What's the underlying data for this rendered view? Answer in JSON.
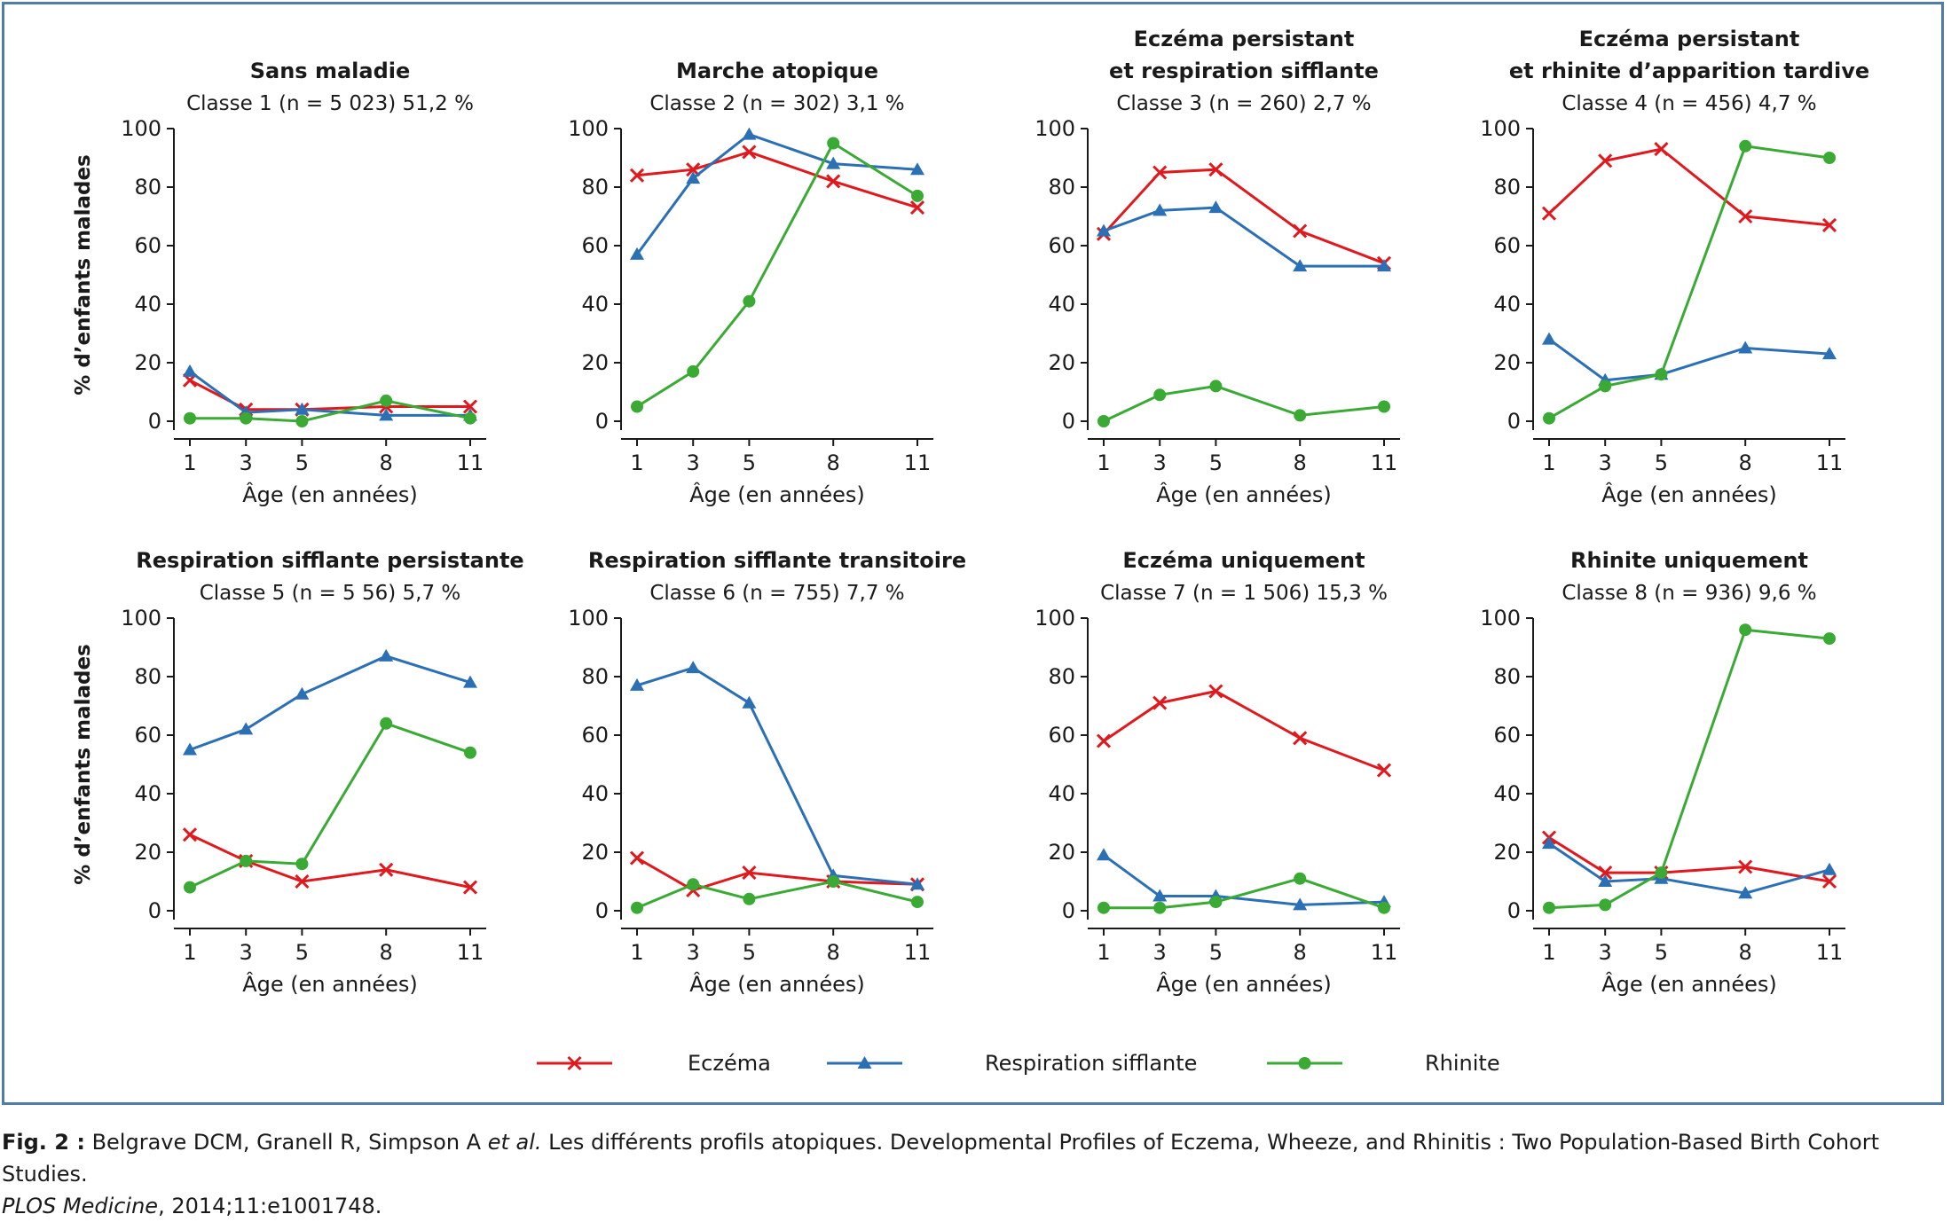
{
  "series_styles": [
    {
      "key": "eczema",
      "name": "Eczéma",
      "color": "#e0191e",
      "marker": "x"
    },
    {
      "key": "wheeze",
      "name": "Respiration sifflante",
      "color": "#2b6fb5",
      "marker": "triangle"
    },
    {
      "key": "rhinite",
      "name": "Rhinite",
      "color": "#3aaa35",
      "marker": "circle"
    }
  ],
  "chart_data": [
    {
      "type": "line",
      "title_lines": [
        "Sans maladie"
      ],
      "subtitle": "Classe 1 (n = 5 023) 51,2 %",
      "x": [
        1,
        3,
        5,
        8,
        11
      ],
      "xticks": [
        "1",
        "3",
        "5",
        "8",
        "11"
      ],
      "xlabel": "Âge (en années)",
      "ylabel": "% d’enfants malades",
      "ylim": [
        0,
        100
      ],
      "yticks": [
        "0",
        "20",
        "40",
        "60",
        "80",
        "100"
      ],
      "series": [
        {
          "name": "Eczéma",
          "values": [
            14,
            4,
            4,
            5,
            5
          ]
        },
        {
          "name": "Respiration sifflante",
          "values": [
            17,
            3,
            4,
            2,
            2
          ]
        },
        {
          "name": "Rhinite",
          "values": [
            1,
            1,
            0,
            7,
            1
          ]
        }
      ]
    },
    {
      "type": "line",
      "title_lines": [
        "Marche atopique"
      ],
      "subtitle": "Classe 2 (n = 302) 3,1 %",
      "x": [
        1,
        3,
        5,
        8,
        11
      ],
      "xticks": [
        "1",
        "3",
        "5",
        "8",
        "11"
      ],
      "xlabel": "Âge (en années)",
      "ylabel": "",
      "ylim": [
        0,
        100
      ],
      "yticks": [
        "0",
        "20",
        "40",
        "60",
        "80",
        "100"
      ],
      "series": [
        {
          "name": "Eczéma",
          "values": [
            84,
            86,
            92,
            82,
            73
          ]
        },
        {
          "name": "Respiration sifflante",
          "values": [
            57,
            83,
            98,
            88,
            86
          ]
        },
        {
          "name": "Rhinite",
          "values": [
            5,
            17,
            41,
            95,
            77
          ]
        }
      ]
    },
    {
      "type": "line",
      "title_lines": [
        "Eczéma persistant",
        "et respiration sifflante"
      ],
      "subtitle": "Classe 3 (n = 260) 2,7 %",
      "x": [
        1,
        3,
        5,
        8,
        11
      ],
      "xticks": [
        "1",
        "3",
        "5",
        "8",
        "11"
      ],
      "xlabel": "Âge (en années)",
      "ylabel": "",
      "ylim": [
        0,
        100
      ],
      "yticks": [
        "0",
        "20",
        "40",
        "60",
        "80",
        "100"
      ],
      "series": [
        {
          "name": "Eczéma",
          "values": [
            64,
            85,
            86,
            65,
            54
          ]
        },
        {
          "name": "Respiration sifflante",
          "values": [
            65,
            72,
            73,
            53,
            53
          ]
        },
        {
          "name": "Rhinite",
          "values": [
            0,
            9,
            12,
            2,
            5
          ]
        }
      ]
    },
    {
      "type": "line",
      "title_lines": [
        "Eczéma persistant",
        "et rhinite d’apparition tardive"
      ],
      "subtitle": "Classe 4 (n = 456) 4,7 %",
      "x": [
        1,
        3,
        5,
        8,
        11
      ],
      "xticks": [
        "1",
        "3",
        "5",
        "8",
        "11"
      ],
      "xlabel": "Âge (en années)",
      "ylabel": "",
      "ylim": [
        0,
        100
      ],
      "yticks": [
        "0",
        "20",
        "40",
        "60",
        "80",
        "100"
      ],
      "series": [
        {
          "name": "Eczéma",
          "values": [
            71,
            89,
            93,
            70,
            67
          ]
        },
        {
          "name": "Respiration sifflante",
          "values": [
            28,
            14,
            16,
            25,
            23
          ]
        },
        {
          "name": "Rhinite",
          "values": [
            1,
            12,
            16,
            94,
            90
          ]
        }
      ]
    },
    {
      "type": "line",
      "title_lines": [
        "Respiration sifflante persistante"
      ],
      "subtitle": "Classe 5 (n = 5 56) 5,7 %",
      "x": [
        1,
        3,
        5,
        8,
        11
      ],
      "xticks": [
        "1",
        "3",
        "5",
        "8",
        "11"
      ],
      "xlabel": "Âge (en années)",
      "ylabel": "% d’enfants malades",
      "ylim": [
        0,
        100
      ],
      "yticks": [
        "0",
        "20",
        "40",
        "60",
        "80",
        "100"
      ],
      "series": [
        {
          "name": "Eczéma",
          "values": [
            26,
            17,
            10,
            14,
            8
          ]
        },
        {
          "name": "Respiration sifflante",
          "values": [
            55,
            62,
            74,
            87,
            78
          ]
        },
        {
          "name": "Rhinite",
          "values": [
            8,
            17,
            16,
            64,
            54
          ]
        }
      ]
    },
    {
      "type": "line",
      "title_lines": [
        "Respiration sifflante transitoire"
      ],
      "subtitle": "Classe 6 (n = 755) 7,7 %",
      "x": [
        1,
        3,
        5,
        8,
        11
      ],
      "xticks": [
        "1",
        "3",
        "5",
        "8",
        "11"
      ],
      "xlabel": "Âge (en années)",
      "ylabel": "",
      "ylim": [
        0,
        100
      ],
      "yticks": [
        "0",
        "20",
        "40",
        "60",
        "80",
        "100"
      ],
      "series": [
        {
          "name": "Eczéma",
          "values": [
            18,
            7,
            13,
            10,
            9
          ]
        },
        {
          "name": "Respiration sifflante",
          "values": [
            77,
            83,
            71,
            12,
            9
          ]
        },
        {
          "name": "Rhinite",
          "values": [
            1,
            9,
            4,
            10,
            3
          ]
        }
      ]
    },
    {
      "type": "line",
      "title_lines": [
        "Eczéma uniquement"
      ],
      "subtitle": "Classe 7 (n = 1 506) 15,3 %",
      "x": [
        1,
        3,
        5,
        8,
        11
      ],
      "xticks": [
        "1",
        "3",
        "5",
        "8",
        "11"
      ],
      "xlabel": "Âge (en années)",
      "ylabel": "",
      "ylim": [
        0,
        100
      ],
      "yticks": [
        "0",
        "20",
        "40",
        "60",
        "80",
        "100"
      ],
      "series": [
        {
          "name": "Eczéma",
          "values": [
            58,
            71,
            75,
            59,
            48
          ]
        },
        {
          "name": "Respiration sifflante",
          "values": [
            19,
            5,
            5,
            2,
            3
          ]
        },
        {
          "name": "Rhinite",
          "values": [
            1,
            1,
            3,
            11,
            1
          ]
        }
      ]
    },
    {
      "type": "line",
      "title_lines": [
        "Rhinite uniquement"
      ],
      "subtitle": "Classe 8 (n = 936) 9,6 %",
      "x": [
        1,
        3,
        5,
        8,
        11
      ],
      "xticks": [
        "1",
        "3",
        "5",
        "8",
        "11"
      ],
      "xlabel": "Âge (en années)",
      "ylabel": "",
      "ylim": [
        0,
        100
      ],
      "yticks": [
        "0",
        "20",
        "40",
        "60",
        "80",
        "100"
      ],
      "series": [
        {
          "name": "Eczéma",
          "values": [
            25,
            13,
            13,
            15,
            10
          ]
        },
        {
          "name": "Respiration sifflante",
          "values": [
            23,
            10,
            11,
            6,
            14
          ]
        },
        {
          "name": "Rhinite",
          "values": [
            1,
            2,
            13,
            96,
            93
          ]
        }
      ]
    }
  ],
  "caption": {
    "label": "Fig. 2 :",
    "authors": " Belgrave DCM, Granell R, Simpson A ",
    "etal": "et al.",
    "text": " Les différents profils atopiques. Developmental Profiles of Eczema, Wheeze, and Rhinitis : Two Population-Based Birth Cohort Studies.",
    "journal": "PLOS Medicine",
    "ref": ", 2014;11:e1001748."
  }
}
